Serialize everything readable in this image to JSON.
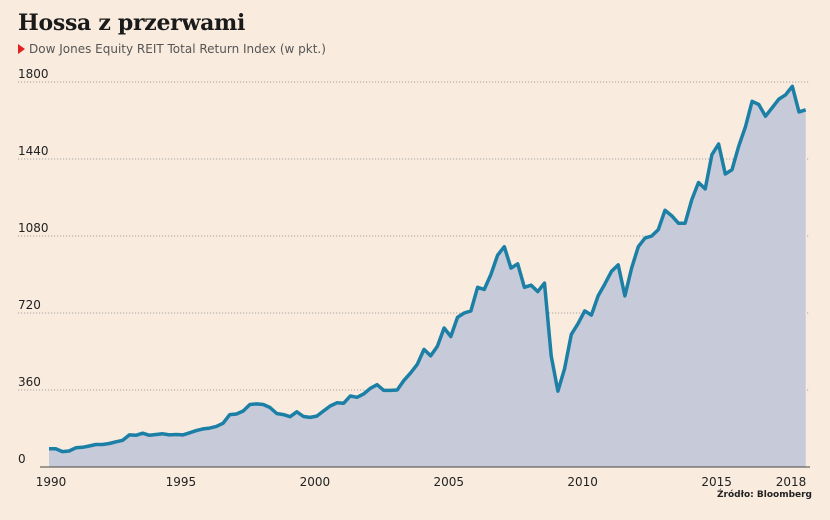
{
  "title": "Hossa z przerwami",
  "subtitle": "Dow Jones Equity REIT Total Return Index (w pkt.)",
  "source": "Źródło: Bloomberg",
  "colors": {
    "line": "#1b7fa6",
    "area": "#c7cad8",
    "background": "#f9ecdf",
    "marker": "#e2211c"
  },
  "chart_data": {
    "type": "area",
    "title": "Hossa z przerwami",
    "ylabel": "w pkt.",
    "ylim": [
      0,
      1800
    ],
    "xlim": [
      1990,
      2018.3
    ],
    "yticks": [
      0,
      360,
      720,
      1080,
      1440,
      1800
    ],
    "xticks": [
      1990,
      1995,
      2000,
      2005,
      2010,
      2015,
      2018
    ],
    "series": [
      {
        "name": "Dow Jones Equity REIT Total Return Index",
        "x": [
          1990,
          1990.25,
          1990.5,
          1990.75,
          1991,
          1991.25,
          1991.5,
          1991.75,
          1992,
          1992.25,
          1992.5,
          1992.75,
          1993,
          1993.25,
          1993.5,
          1993.75,
          1994,
          1994.25,
          1994.5,
          1994.75,
          1995,
          1995.25,
          1995.5,
          1995.75,
          1996,
          1996.25,
          1996.5,
          1996.75,
          1997,
          1997.25,
          1997.5,
          1997.75,
          1998,
          1998.25,
          1998.5,
          1998.75,
          1999,
          1999.25,
          1999.5,
          1999.75,
          2000,
          2000.25,
          2000.5,
          2000.75,
          2001,
          2001.25,
          2001.5,
          2001.75,
          2002,
          2002.25,
          2002.5,
          2002.75,
          2003,
          2003.25,
          2003.5,
          2003.75,
          2004,
          2004.25,
          2004.5,
          2004.75,
          2005,
          2005.25,
          2005.5,
          2005.75,
          2006,
          2006.25,
          2006.5,
          2006.75,
          2007,
          2007.25,
          2007.5,
          2007.75,
          2008,
          2008.25,
          2008.5,
          2008.75,
          2009,
          2009.25,
          2009.5,
          2009.75,
          2010,
          2010.25,
          2010.5,
          2010.75,
          2011,
          2011.25,
          2011.5,
          2011.75,
          2012,
          2012.25,
          2012.5,
          2012.75,
          2013,
          2013.25,
          2013.5,
          2013.75,
          2014,
          2014.25,
          2014.5,
          2014.75,
          2015,
          2015.25,
          2015.5,
          2015.75,
          2016,
          2016.25,
          2016.5,
          2016.75,
          2017,
          2017.25,
          2017.5,
          2017.75,
          2018,
          2018.25
        ],
        "values": [
          85,
          85,
          72,
          75,
          90,
          92,
          98,
          105,
          105,
          110,
          118,
          125,
          150,
          148,
          158,
          148,
          152,
          155,
          150,
          152,
          150,
          160,
          170,
          178,
          182,
          190,
          205,
          245,
          248,
          262,
          292,
          295,
          292,
          278,
          250,
          245,
          235,
          258,
          236,
          232,
          238,
          262,
          285,
          300,
          298,
          332,
          326,
          342,
          368,
          385,
          358,
          358,
          360,
          405,
          440,
          480,
          550,
          520,
          565,
          650,
          610,
          700,
          720,
          730,
          840,
          830,
          900,
          990,
          1030,
          930,
          950,
          840,
          850,
          820,
          860,
          520,
          355,
          460,
          620,
          670,
          730,
          710,
          800,
          855,
          915,
          945,
          800,
          930,
          1030,
          1070,
          1080,
          1110,
          1200,
          1175,
          1140,
          1140,
          1250,
          1330,
          1300,
          1460,
          1510,
          1370,
          1390,
          1500,
          1590,
          1710,
          1695,
          1640,
          1680,
          1720,
          1740,
          1780,
          1660,
          1670
        ]
      }
    ]
  }
}
